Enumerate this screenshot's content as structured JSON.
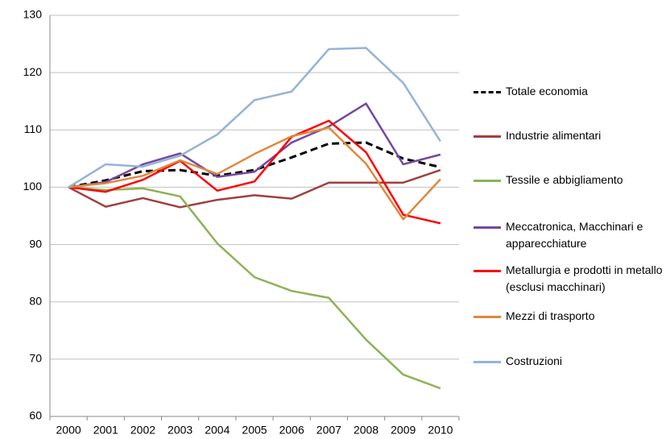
{
  "chart_data": {
    "type": "line",
    "categories": [
      "2000",
      "2001",
      "2002",
      "2003",
      "2004",
      "2005",
      "2006",
      "2007",
      "2008",
      "2009",
      "2010"
    ],
    "ylim": [
      60,
      130
    ],
    "yticks": [
      60,
      70,
      80,
      90,
      100,
      110,
      120,
      130
    ],
    "grid": true,
    "series": [
      {
        "name": "Totale economia",
        "color": "#000000",
        "dashed": true,
        "values": [
          100,
          101.2,
          102.8,
          103,
          102,
          103,
          105.2,
          107.6,
          107.8,
          105,
          103.5
        ]
      },
      {
        "name": "Industrie alimentari",
        "color": "#a0403f",
        "values": [
          100,
          96.6,
          98.1,
          96.5,
          97.8,
          98.6,
          98,
          100.8,
          100.8,
          100.8,
          103
        ]
      },
      {
        "name": "Tessile e abbigliamento",
        "color": "#8db255",
        "values": [
          100,
          99.5,
          99.8,
          98.4,
          90.2,
          84.3,
          81.9,
          80.7,
          73.4,
          67.3,
          64.9
        ]
      },
      {
        "name": "Meccatronica, Macchinari e apparecchiature",
        "color": "#7448a0",
        "values": [
          100,
          100.9,
          104,
          105.9,
          101.8,
          102.7,
          107.8,
          110.6,
          114.6,
          104,
          105.7
        ]
      },
      {
        "name": "Metallurgia e prodotti in metallo (esclusi macchinari)",
        "color": "#ff0000",
        "values": [
          100,
          99.2,
          101.3,
          104.6,
          99.4,
          101,
          108.8,
          111.6,
          106.1,
          95.2,
          93.7
        ]
      },
      {
        "name": "Mezzi di trasporto",
        "color": "#e0883c",
        "values": [
          100,
          100.7,
          102,
          104.7,
          102.3,
          105.8,
          108.9,
          110.4,
          104.1,
          94.4,
          101.4
        ]
      },
      {
        "name": "Costruzioni",
        "color": "#95b3d7",
        "values": [
          100,
          104,
          103.6,
          105.5,
          109.2,
          115.2,
          116.7,
          124.1,
          124.3,
          118.2,
          108
        ]
      }
    ]
  }
}
